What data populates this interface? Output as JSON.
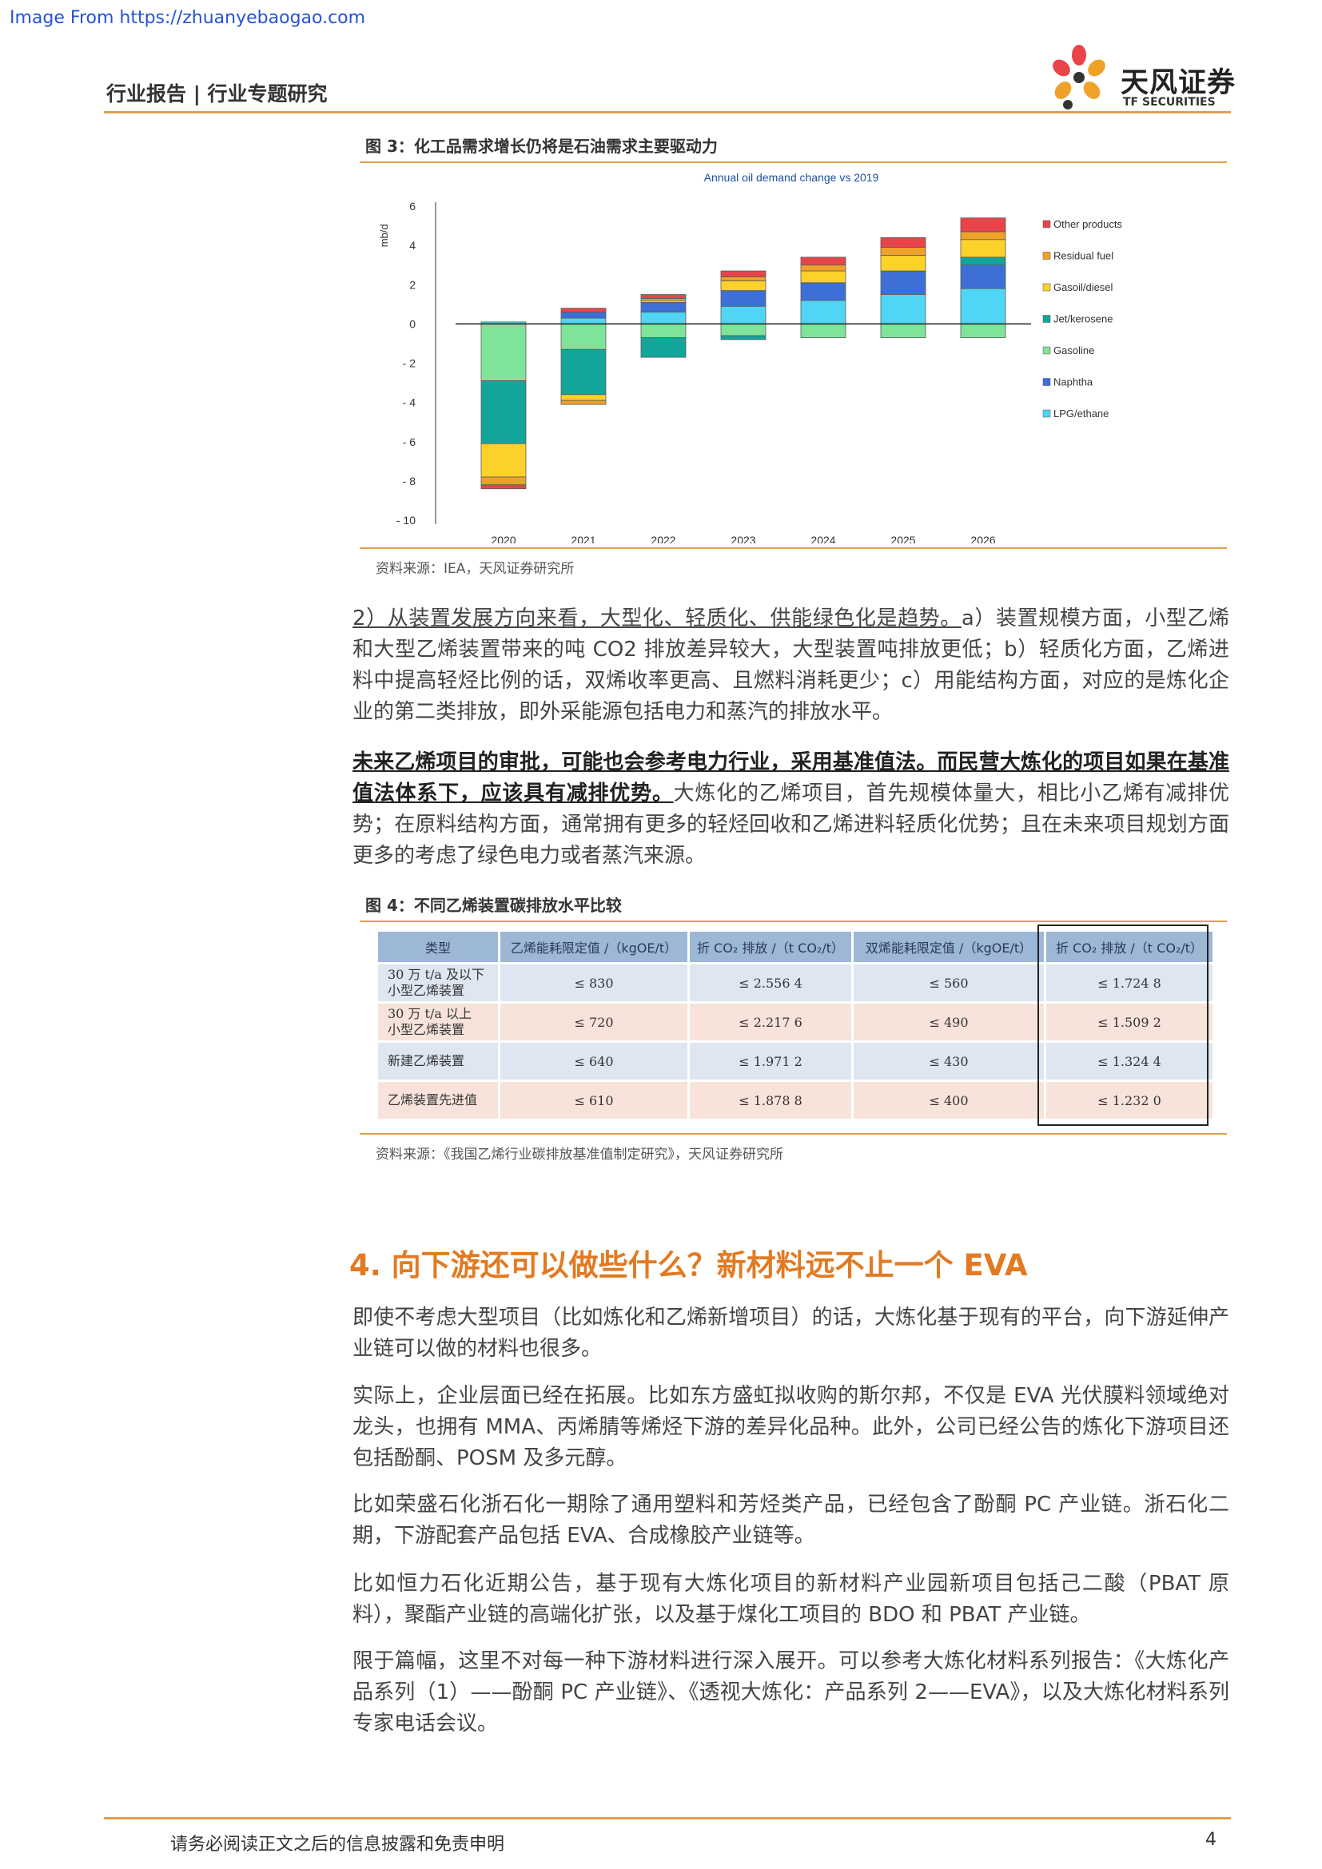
{
  "source_url": "Image From https://zhuanyebaogao.com",
  "header": {
    "title": "行业报告 | 行业专题研究",
    "logo_cn": "天风证券",
    "logo_en": "TF SECURITIES"
  },
  "figure3": {
    "title": "图 3：化工品需求增长仍将是石油需求主要驱动力",
    "source": "资料来源：IEA，天风证券研究所"
  },
  "chart_data": {
    "type": "bar",
    "stacked": true,
    "title": "Annual oil demand change vs 2019",
    "ylabel": "mb/d",
    "xlabel": "",
    "ylim": [
      -10,
      6
    ],
    "yticks": [
      "6",
      "4",
      "2",
      "0",
      "- 2",
      "- 4",
      "- 6",
      "- 8",
      "- 10"
    ],
    "grid": false,
    "legend_position": "right",
    "categories": [
      "2020",
      "2021",
      "2022",
      "2023",
      "2024",
      "2025",
      "2026"
    ],
    "series": [
      {
        "name": "Other products",
        "color": "#e8444a",
        "values": [
          -0.2,
          0.2,
          0.2,
          0.3,
          0.4,
          0.5,
          0.7
        ]
      },
      {
        "name": "Residual fuel",
        "color": "#f0a12a",
        "values": [
          -0.4,
          -0.2,
          0.1,
          0.2,
          0.3,
          0.4,
          0.4
        ]
      },
      {
        "name": "Gasoil/diesel",
        "color": "#fcd12a",
        "values": [
          -1.7,
          -0.3,
          0.1,
          0.5,
          0.6,
          0.8,
          0.9
        ]
      },
      {
        "name": "Jet/kerosene",
        "color": "#12a59a",
        "values": [
          -3.2,
          -2.3,
          -1.0,
          -0.2,
          0.0,
          0.0,
          0.4
        ]
      },
      {
        "name": "Gasoline",
        "color": "#7fe39a",
        "values": [
          -2.9,
          -1.3,
          -0.7,
          -0.6,
          -0.7,
          -0.7,
          -0.7
        ]
      },
      {
        "name": "Naphtha",
        "color": "#3e6fd6",
        "values": [
          0.0,
          0.3,
          0.5,
          0.8,
          0.9,
          1.2,
          1.2
        ]
      },
      {
        "name": "LPG/ethane",
        "color": "#4fd6f4",
        "values": [
          0.1,
          0.3,
          0.6,
          0.9,
          1.2,
          1.5,
          1.8
        ]
      }
    ]
  },
  "para1": {
    "underlined": "2）从装置发展方向来看，大型化、轻质化、供能绿色化是趋势。",
    "rest": "a）装置规模方面，小型乙烯和大型乙烯装置带来的吨 CO2 排放差异较大，大型装置吨排放更低；b）轻质化方面，乙烯进料中提高轻烃比例的话，双烯收率更高、且燃料消耗更少；c）用能结构方面，对应的是炼化企业的第二类排放，即外采能源包括电力和蒸汽的排放水平。"
  },
  "para2": {
    "bold": "未来乙烯项目的审批，可能也会参考电力行业，采用基准值法。而民营大炼化的项目如果在基准值法体系下，应该具有减排优势。",
    "rest": "大炼化的乙烯项目，首先规模体量大，相比小乙烯有减排优势；在原料结构方面，通常拥有更多的轻烃回收和乙烯进料轻质化优势；且在未来项目规划方面更多的考虑了绿色电力或者蒸汽来源。"
  },
  "figure4": {
    "title": "图 4：不同乙烯装置碳排放水平比较",
    "source": "资料来源：《我国乙烯行业碳排放基准值制定研究》，天风证券研究所"
  },
  "table": {
    "headers": [
      "类型",
      "乙烯能耗限定值 /（kgOE/t）",
      "折 CO₂ 排放 /（t CO₂/t）",
      "双烯能耗限定值 /（kgOE/t）",
      "折 CO₂ 排放 /（t CO₂/t）"
    ],
    "rows": [
      {
        "label1": "30 万 t/a 及以下",
        "label2": "小型乙烯装置",
        "c1": "≤ 830",
        "c2": "≤ 2.556 4",
        "c3": "≤ 560",
        "c4": "≤ 1.724 8"
      },
      {
        "label1": "30 万 t/a 以上",
        "label2": "小型乙烯装置",
        "c1": "≤ 720",
        "c2": "≤ 2.217 6",
        "c3": "≤ 490",
        "c4": "≤ 1.509 2"
      },
      {
        "label1": "新建乙烯装置",
        "label2": "",
        "c1": "≤ 640",
        "c2": "≤ 1.971 2",
        "c3": "≤ 430",
        "c4": "≤ 1.324 4"
      },
      {
        "label1": "乙烯装置先进值",
        "label2": "",
        "c1": "≤ 610",
        "c2": "≤ 1.878 8",
        "c3": "≤ 400",
        "c4": "≤ 1.232 0"
      }
    ]
  },
  "section4": {
    "heading": "4. 向下游还可以做些什么？新材料远不止一个 EVA",
    "p1": "即使不考虑大型项目（比如炼化和乙烯新增项目）的话，大炼化基于现有的平台，向下游延伸产业链可以做的材料也很多。",
    "p2": "实际上，企业层面已经在拓展。比如东方盛虹拟收购的斯尔邦，不仅是 EVA 光伏膜料领域绝对龙头，也拥有 MMA、丙烯腈等烯烃下游的差异化品种。此外，公司已经公告的炼化下游项目还包括酚酮、POSM 及多元醇。",
    "p3": "比如荣盛石化浙石化一期除了通用塑料和芳烃类产品，已经包含了酚酮 PC 产业链。浙石化二期，下游配套产品包括 EVA、合成橡胶产业链等。",
    "p4": "比如恒力石化近期公告，基于现有大炼化项目的新材料产业园新项目包括己二酸（PBAT 原料），聚酯产业链的高端化扩张，以及基于煤化工项目的 BDO 和 PBAT 产业链。",
    "p5": "限于篇幅，这里不对每一种下游材料进行深入展开。可以参考大炼化材料系列报告：《大炼化产品系列（1）——酚酮 PC 产业链》、《透视大炼化：产品系列 2——EVA》，以及大炼化材料系列专家电话会议。"
  },
  "footer": {
    "disclaimer": "请务必阅读正文之后的信息披露和免责申明",
    "page": "4"
  }
}
